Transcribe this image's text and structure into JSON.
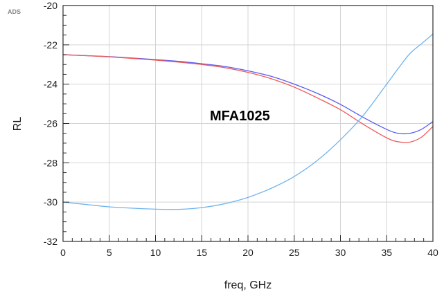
{
  "chart_data": {
    "type": "line",
    "watermark": "ADS",
    "annotation": "MFA1025",
    "xlabel": "freq, GHz",
    "ylabel": "RL",
    "xlim": [
      0,
      40
    ],
    "ylim": [
      -32,
      -20
    ],
    "x_ticks": [
      0,
      5,
      10,
      15,
      20,
      25,
      30,
      35,
      40
    ],
    "y_ticks": [
      -32,
      -30,
      -28,
      -26,
      -24,
      -22,
      -20
    ],
    "x_minor_step": 1,
    "y_minor_step": 0.5,
    "grid": true,
    "x": [
      0,
      2.5,
      5,
      7.5,
      10,
      12.5,
      15,
      17.5,
      20,
      22.5,
      25,
      27.5,
      30,
      32.5,
      35,
      36.25,
      37.5,
      38.75,
      40
    ],
    "series": [
      {
        "color": "#5b5bf0",
        "values": [
          -22.5,
          -22.55,
          -22.6,
          -22.67,
          -22.75,
          -22.84,
          -22.96,
          -23.1,
          -23.32,
          -23.6,
          -24.0,
          -24.47,
          -25.03,
          -25.7,
          -26.3,
          -26.5,
          -26.5,
          -26.3,
          -25.9
        ]
      },
      {
        "color": "#ee5a5a",
        "values": [
          -22.5,
          -22.55,
          -22.61,
          -22.69,
          -22.78,
          -22.88,
          -23.0,
          -23.16,
          -23.4,
          -23.72,
          -24.15,
          -24.7,
          -25.3,
          -26.05,
          -26.73,
          -26.93,
          -26.95,
          -26.7,
          -26.15
        ]
      },
      {
        "color": "#6eb4f0",
        "values": [
          -30.0,
          -30.12,
          -30.24,
          -30.31,
          -30.36,
          -30.37,
          -30.28,
          -30.08,
          -29.76,
          -29.3,
          -28.7,
          -27.88,
          -26.83,
          -25.57,
          -24.0,
          -23.2,
          -22.45,
          -21.95,
          -21.45
        ]
      }
    ]
  }
}
